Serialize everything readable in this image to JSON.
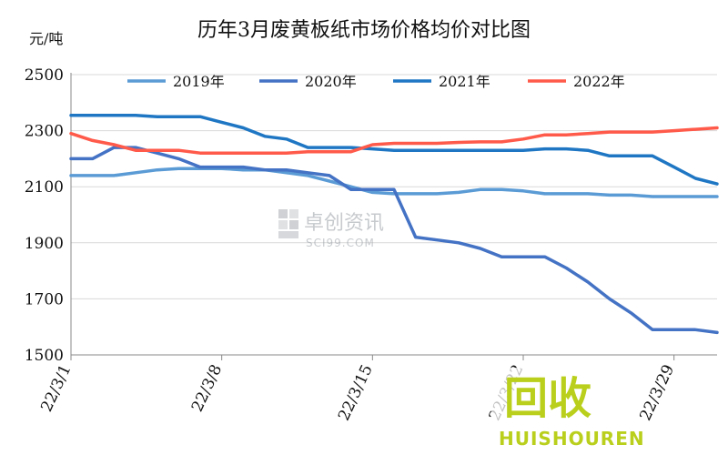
{
  "chart_data": {
    "type": "line",
    "title": "历年3月废黄板纸市场价格均价对比图",
    "ylabel": "元/吨",
    "xlabel": "",
    "ylim": [
      1500,
      2500
    ],
    "yticks": [
      1500,
      1700,
      1900,
      2100,
      2300,
      2500
    ],
    "x": [
      "3/1",
      "3/2",
      "3/3",
      "3/4",
      "3/5",
      "3/6",
      "3/7",
      "3/8",
      "3/9",
      "3/10",
      "3/11",
      "3/12",
      "3/13",
      "3/14",
      "3/15",
      "3/16",
      "3/17",
      "3/18",
      "3/19",
      "3/20",
      "3/21",
      "3/22",
      "3/23",
      "3/24",
      "3/25",
      "3/26",
      "3/27",
      "3/28",
      "3/29",
      "3/30",
      "3/31"
    ],
    "xticks": [
      "22/3/1",
      "22/3/8",
      "22/3/15",
      "22/3/22",
      "22/3/29"
    ],
    "xtick_index": [
      0,
      7,
      14,
      21,
      28
    ],
    "grid": "horizontal",
    "legend_position": "top",
    "series": [
      {
        "name": "2019年",
        "color": "#5b9bd5",
        "values": [
          2140,
          2140,
          2140,
          2150,
          2160,
          2165,
          2165,
          2165,
          2160,
          2160,
          2150,
          2140,
          2120,
          2100,
          2080,
          2075,
          2075,
          2075,
          2080,
          2090,
          2090,
          2085,
          2075,
          2075,
          2075,
          2070,
          2070,
          2065,
          2065,
          2065,
          2065
        ]
      },
      {
        "name": "2020年",
        "color": "#4472c4",
        "values": [
          2200,
          2200,
          2240,
          2240,
          2220,
          2200,
          2170,
          2170,
          2170,
          2160,
          2160,
          2150,
          2140,
          2090,
          2090,
          2090,
          1920,
          1910,
          1900,
          1880,
          1850,
          1850,
          1850,
          1810,
          1760,
          1700,
          1650,
          1590,
          1590,
          1590,
          1580
        ]
      },
      {
        "name": "2021年",
        "color": "#1f77c4",
        "values": [
          2355,
          2355,
          2355,
          2355,
          2350,
          2350,
          2350,
          2330,
          2310,
          2280,
          2270,
          2240,
          2240,
          2240,
          2235,
          2230,
          2230,
          2230,
          2230,
          2230,
          2230,
          2230,
          2235,
          2235,
          2230,
          2210,
          2210,
          2210,
          2170,
          2130,
          2110
        ]
      },
      {
        "name": "2022年",
        "color": "#ff5a4a",
        "values": [
          2290,
          2265,
          2250,
          2230,
          2230,
          2230,
          2220,
          2220,
          2220,
          2220,
          2220,
          2225,
          2225,
          2225,
          2250,
          2255,
          2255,
          2255,
          2258,
          2260,
          2260,
          2270,
          2285,
          2285,
          2290,
          2295,
          2295,
          2295,
          2300,
          2305,
          2310
        ]
      }
    ],
    "watermarks": [
      "卓创资讯",
      "SCI99.COM",
      "回收",
      "HUISHOUREN"
    ]
  }
}
